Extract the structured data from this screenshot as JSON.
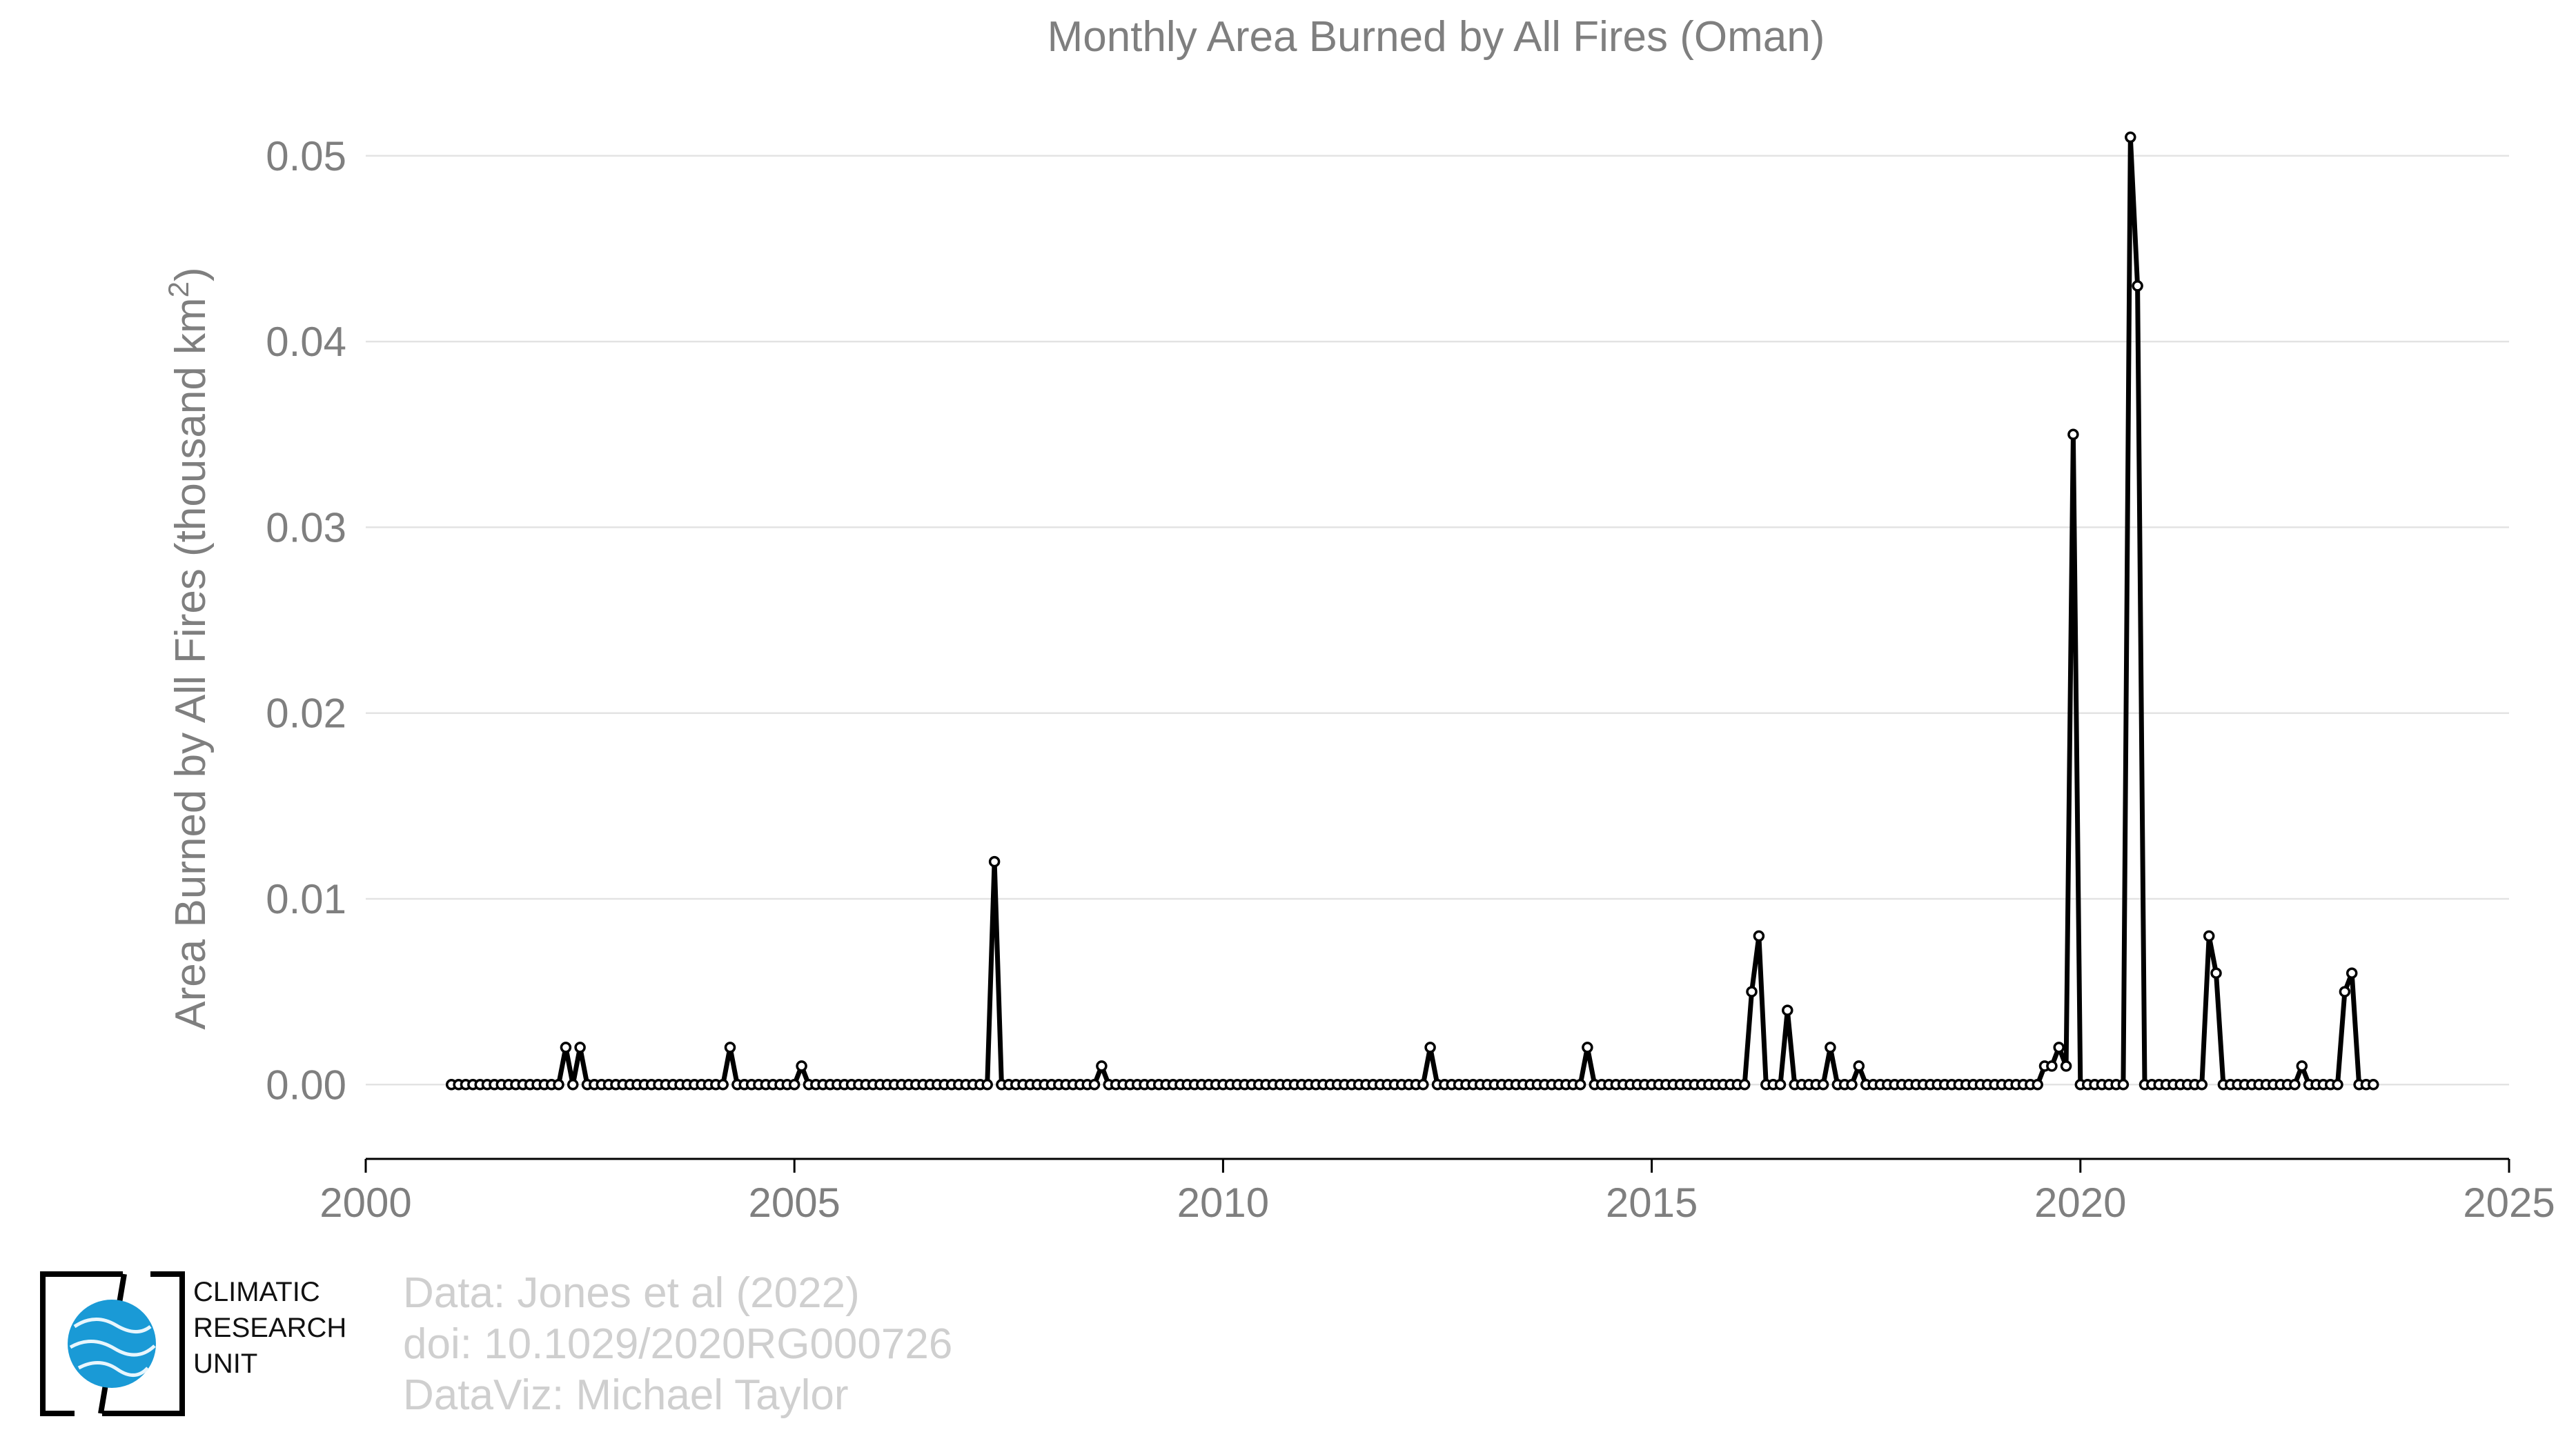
{
  "chart_data": {
    "type": "line",
    "title": "Monthly Area Burned by All Fires (Oman)",
    "ylabel": "Area Burned by All Fires (thousand km",
    "ylabel_sup": "2",
    "ylabel_close": ")",
    "xlim": [
      2000,
      2025
    ],
    "ylim": [
      -0.004,
      0.052
    ],
    "x_ticks": [
      2000,
      2005,
      2010,
      2015,
      2020,
      2025
    ],
    "y_ticks": [
      0.0,
      0.01,
      0.02,
      0.03,
      0.04,
      0.05
    ],
    "y_tick_labels": [
      "0.00",
      "0.01",
      "0.02",
      "0.03",
      "0.04",
      "0.05"
    ],
    "grid": "horizontal",
    "series": [
      {
        "color": "#000000",
        "start": "2001-01",
        "frequency": "monthly",
        "values": [
          0,
          0,
          0,
          0,
          0,
          0,
          0,
          0,
          0,
          0,
          0,
          0,
          0,
          0,
          0,
          0,
          0.002,
          0,
          0.002,
          0,
          0,
          0,
          0,
          0,
          0,
          0,
          0,
          0,
          0,
          0,
          0,
          0,
          0,
          0,
          0,
          0,
          0,
          0,
          0,
          0.002,
          0,
          0,
          0,
          0,
          0,
          0,
          0,
          0,
          0,
          0.001,
          0,
          0,
          0,
          0,
          0,
          0,
          0,
          0,
          0,
          0,
          0,
          0,
          0,
          0,
          0,
          0,
          0,
          0,
          0,
          0,
          0,
          0,
          0,
          0,
          0,
          0,
          0.012,
          0,
          0,
          0,
          0,
          0,
          0,
          0,
          0,
          0,
          0,
          0,
          0,
          0,
          0,
          0.001,
          0,
          0,
          0,
          0,
          0,
          0,
          0,
          0,
          0,
          0,
          0,
          0,
          0,
          0,
          0,
          0,
          0,
          0,
          0,
          0,
          0,
          0,
          0,
          0,
          0,
          0,
          0,
          0,
          0,
          0,
          0,
          0,
          0,
          0,
          0,
          0,
          0,
          0,
          0,
          0,
          0,
          0,
          0,
          0,
          0,
          0.002,
          0,
          0,
          0,
          0,
          0,
          0,
          0,
          0,
          0,
          0,
          0,
          0,
          0,
          0,
          0,
          0,
          0,
          0,
          0,
          0,
          0,
          0.002,
          0,
          0,
          0,
          0,
          0,
          0,
          0,
          0,
          0,
          0,
          0,
          0,
          0,
          0,
          0,
          0,
          0,
          0,
          0,
          0,
          0,
          0,
          0.005,
          0.008,
          0,
          0,
          0,
          0.004,
          0,
          0,
          0,
          0,
          0,
          0.002,
          0,
          0,
          0,
          0.001,
          0,
          0,
          0,
          0,
          0,
          0,
          0,
          0,
          0,
          0,
          0,
          0,
          0,
          0,
          0,
          0,
          0,
          0,
          0,
          0,
          0,
          0,
          0,
          0,
          0,
          0.001,
          0.001,
          0.002,
          0.001,
          0.035,
          0,
          0,
          0,
          0,
          0,
          0,
          0,
          0.051,
          0.043,
          0,
          0,
          0,
          0,
          0,
          0,
          0,
          0,
          0,
          0.008,
          0.006,
          0,
          0,
          0,
          0,
          0,
          0,
          0,
          0,
          0,
          0,
          0,
          0.001,
          0,
          0,
          0,
          0,
          0,
          0.005,
          0.006,
          0,
          0,
          0
        ]
      }
    ]
  },
  "logo": {
    "line1": "CLIMATIC",
    "line2": "RESEARCH",
    "line3": "UNIT",
    "icon": "globe-icon",
    "globe_color": "#1a9ad6"
  },
  "credits": {
    "line1": "Data: Jones et al (2022)",
    "line2": "doi: 10.1029/2020RG000726",
    "line3": "DataViz: Michael Taylor"
  }
}
